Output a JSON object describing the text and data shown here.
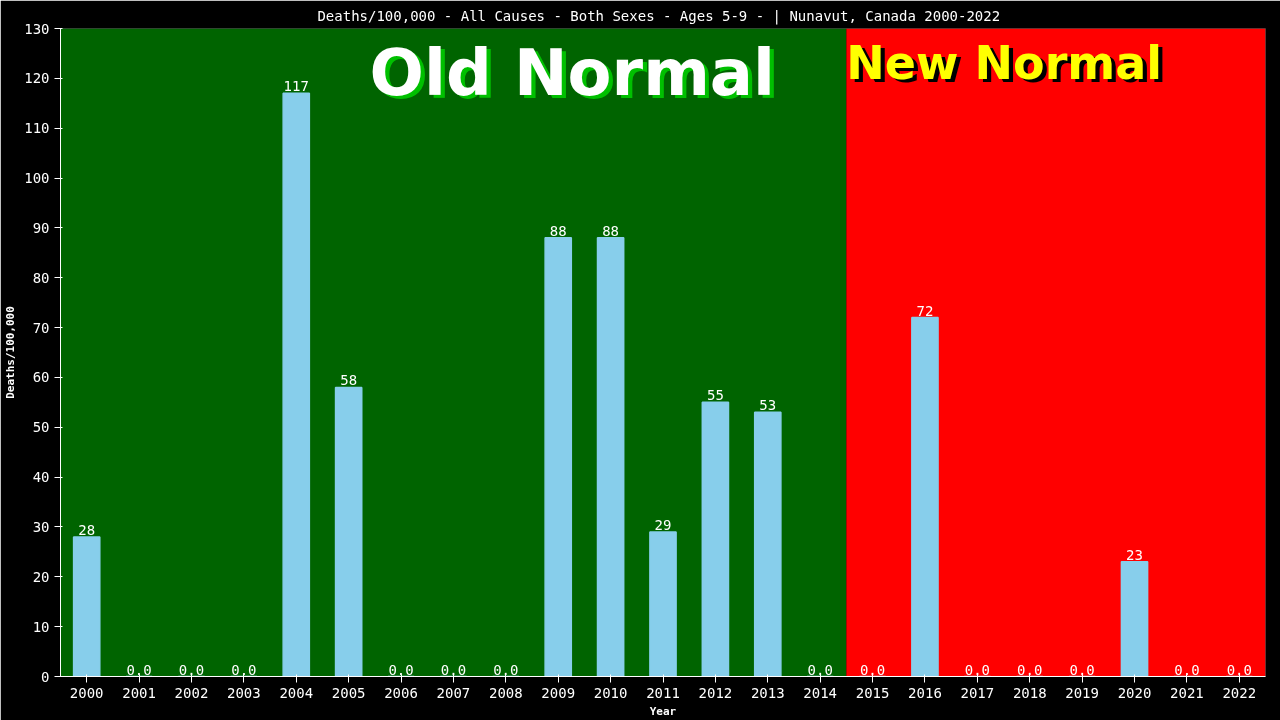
{
  "chart_data": {
    "type": "bar",
    "title": "Deaths/100,000 - All Causes - Both Sexes - Ages 5-9 -  | Nunavut, Canada 2000-2022",
    "xlabel": "Year",
    "ylabel": "Deaths/100,000",
    "categories": [
      "2000",
      "2001",
      "2002",
      "2003",
      "2004",
      "2005",
      "2006",
      "2007",
      "2008",
      "2009",
      "2010",
      "2011",
      "2012",
      "2013",
      "2014",
      "2015",
      "2016",
      "2017",
      "2018",
      "2019",
      "2020",
      "2021",
      "2022"
    ],
    "values": [
      28,
      0,
      0,
      0,
      117,
      58,
      0,
      0,
      0,
      88,
      88,
      29,
      55,
      53,
      0,
      0,
      72,
      0,
      0,
      0,
      23,
      0,
      0
    ],
    "value_labels": [
      "28",
      "0.0",
      "0.0",
      "0.0",
      "117",
      "58",
      "0.0",
      "0.0",
      "0.0",
      "88",
      "88",
      "29",
      "55",
      "53",
      "0.0",
      "0.0",
      "72",
      "0.0",
      "0.0",
      "0.0",
      "23",
      "0.0",
      "0.0"
    ],
    "color": "#87ceeb",
    "ylim": [
      0,
      130
    ],
    "yticks": [
      0,
      10,
      20,
      30,
      40,
      50,
      60,
      70,
      80,
      90,
      100,
      110,
      120,
      130
    ],
    "grid": false,
    "bands": [
      {
        "axis": "x",
        "from": "2000",
        "to": "2014",
        "label": "Old Normal",
        "color": "#006400"
      },
      {
        "axis": "x",
        "from": "2015",
        "to": "2022",
        "label": "New Normal",
        "color": "#ff0000"
      }
    ]
  }
}
